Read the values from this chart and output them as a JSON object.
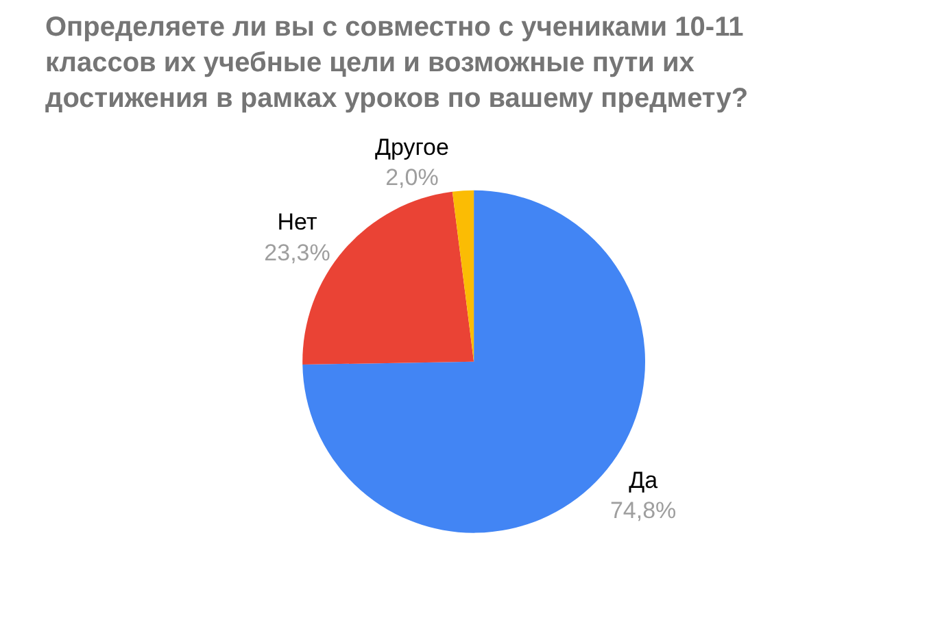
{
  "chart_data": {
    "type": "pie",
    "title": "Определяете ли вы с совместно с учениками 10-11 классов их учебные цели и возможные пути их достижения в рамках уроков по вашему предмету?",
    "categories": [
      "Да",
      "Нет",
      "Другое"
    ],
    "values": [
      74.8,
      23.3,
      2.0
    ],
    "value_labels": [
      "74,8%",
      "23,3%",
      "2,0%"
    ],
    "colors": [
      "#4285f4",
      "#ea4335",
      "#fbbc04"
    ],
    "legend": false
  }
}
